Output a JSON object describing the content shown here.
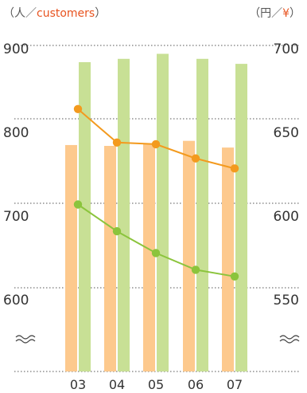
{
  "chart_data": {
    "type": "bar+line",
    "categories": [
      "03",
      "04",
      "05",
      "06",
      "07"
    ],
    "left_unit": {
      "open": "（",
      "a": "人",
      "sep": "／",
      "b": "customers",
      "close": "）"
    },
    "right_unit": {
      "open": "（",
      "a": "円",
      "sep": "／",
      "b": "¥",
      "close": "）"
    },
    "left_axis": {
      "ticks": [
        "900",
        "800",
        "700",
        "600"
      ],
      "tick_values": [
        900,
        800,
        700,
        600
      ],
      "ylim": [
        520,
        950
      ],
      "break": true
    },
    "right_axis": {
      "ticks": [
        "700",
        "650",
        "600",
        "550"
      ],
      "tick_values": [
        700,
        650,
        600,
        550
      ],
      "ylim": [
        510,
        725
      ],
      "break": true
    },
    "grid": "dotted horizontal",
    "series": [
      {
        "kind": "bar",
        "axis": "left",
        "color": "#fdc98d",
        "values": [
          781,
          780,
          783,
          786,
          778
        ]
      },
      {
        "kind": "bar",
        "axis": "right",
        "color": "#c8e095",
        "values": [
          690,
          692,
          695,
          692,
          689
        ]
      },
      {
        "kind": "line",
        "axis": "left",
        "color": "#f39a1e",
        "values": [
          824,
          784,
          782,
          765,
          753
        ]
      },
      {
        "kind": "line",
        "axis": "right",
        "color": "#8bc43c",
        "values": [
          605,
          589,
          576,
          566,
          562
        ]
      }
    ]
  }
}
